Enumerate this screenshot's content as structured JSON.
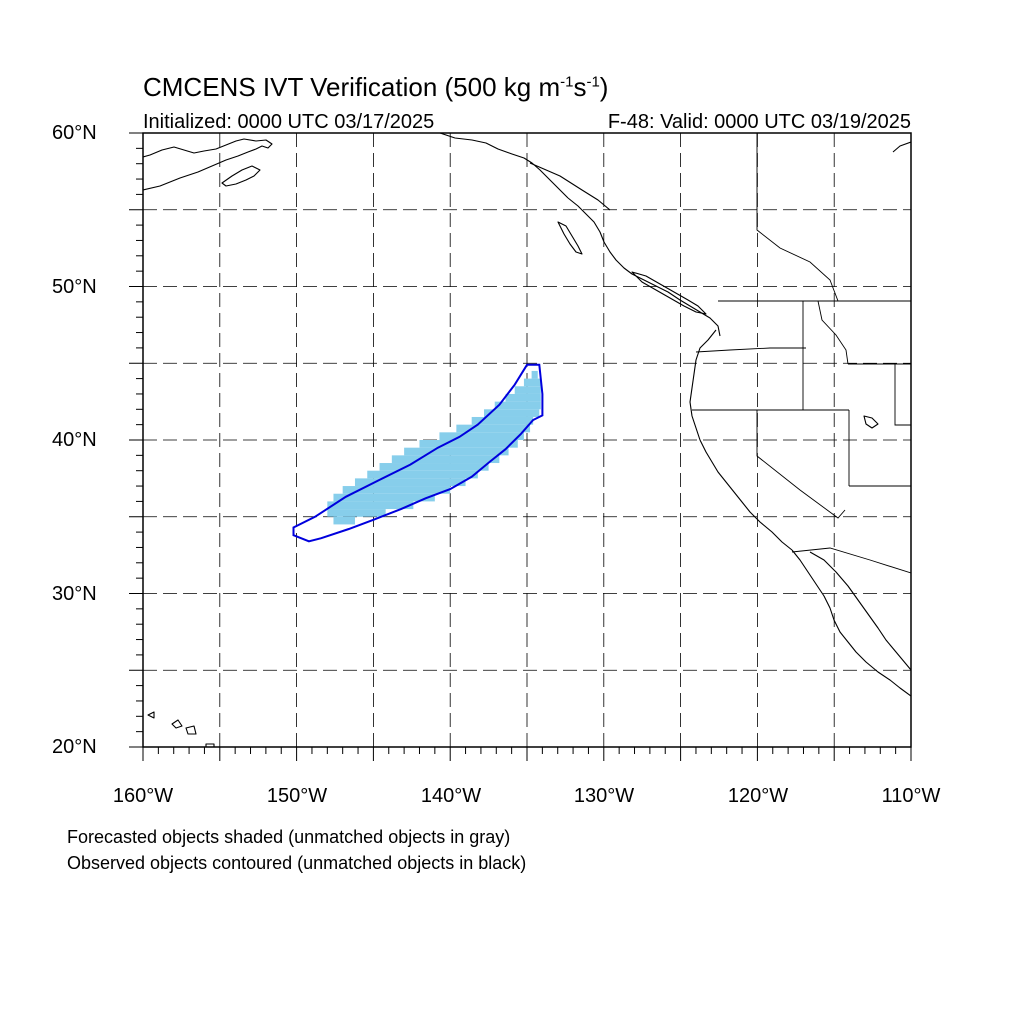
{
  "title": {
    "main": "CMCENS IVT Verification (500 kg m",
    "sup1": "-1",
    "mid": "s",
    "sup2": "-1",
    "end": ")"
  },
  "initialized": "Initialized: 0000 UTC 03/17/2025",
  "valid": "F-48: Valid: 0000 UTC 03/19/2025",
  "lat_labels": [
    "60°N",
    "50°N",
    "40°N",
    "30°N",
    "20°N"
  ],
  "lon_labels": [
    "160°W",
    "150°W",
    "140°W",
    "130°W",
    "120°W",
    "110°W"
  ],
  "notes": [
    "Forecasted objects shaded (unmatched objects in gray)",
    "Observed objects contoured (unmatched objects in black)"
  ],
  "map": {
    "lon_range": [
      -160,
      -110
    ],
    "lat_range": [
      20,
      60
    ],
    "grid_lons": [
      -155,
      -150,
      -145,
      -140,
      -135,
      -130,
      -125,
      -120,
      -115
    ],
    "grid_lats": [
      25,
      30,
      35,
      40,
      45,
      50,
      55
    ],
    "forecast_color": "#87ceeb",
    "observed_color": "#0000dd"
  }
}
